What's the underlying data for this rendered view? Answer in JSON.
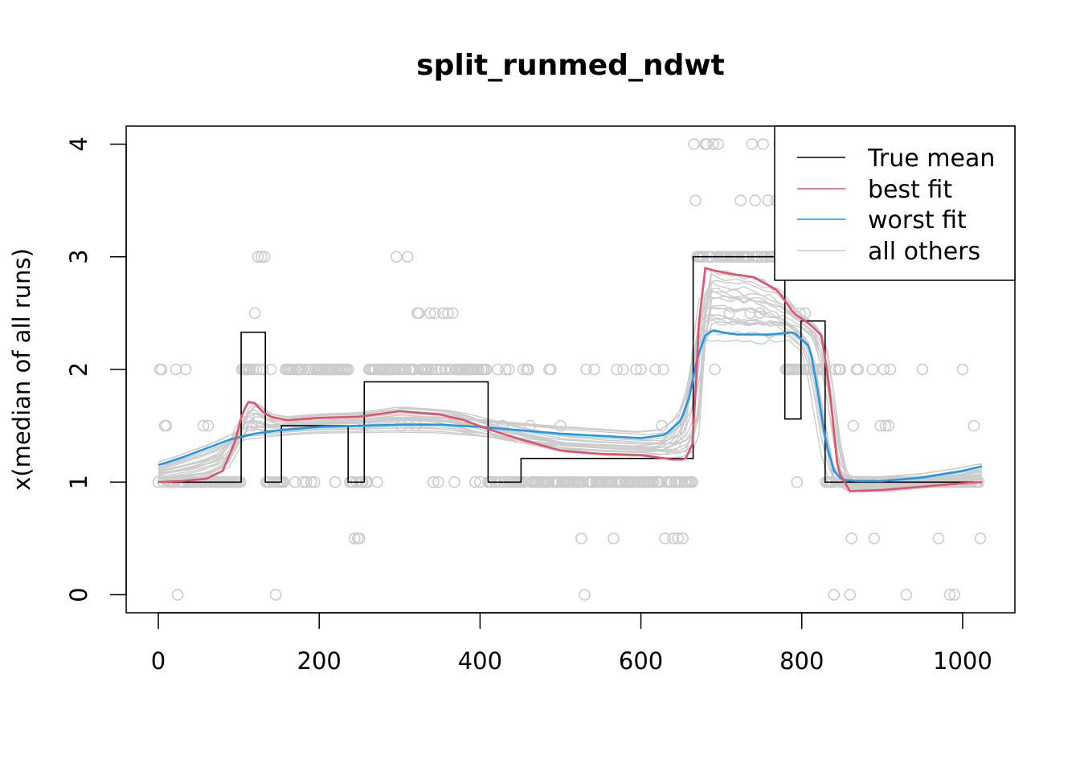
{
  "chart_data": {
    "type": "line",
    "title": "split_runmed_ndwt",
    "xlabel": "",
    "ylabel": "x(median of all runs)",
    "xlim": [
      -40,
      1065
    ],
    "ylim": [
      -0.16,
      4.16
    ],
    "x_ticks": [
      0,
      200,
      400,
      600,
      800,
      1000
    ],
    "y_ticks": [
      0,
      1,
      2,
      3,
      4
    ],
    "legend_position": "top-right",
    "colors": {
      "true_mean": "#000000",
      "best_fit": "#DF536B",
      "worst_fit": "#2297E6",
      "all_others": "#CCCCCC",
      "points": "#CCCCCC"
    },
    "legend": [
      "True mean",
      "best fit",
      "worst fit",
      "all others"
    ],
    "true_mean": [
      [
        0,
        1
      ],
      [
        103,
        1
      ],
      [
        103,
        2.33
      ],
      [
        133,
        2.33
      ],
      [
        133,
        1
      ],
      [
        153,
        1
      ],
      [
        153,
        1.5
      ],
      [
        236,
        1.5
      ],
      [
        236,
        1
      ],
      [
        256,
        1
      ],
      [
        256,
        1.89
      ],
      [
        410,
        1.89
      ],
      [
        410,
        1
      ],
      [
        451,
        1
      ],
      [
        451,
        1.21
      ],
      [
        665,
        1.21
      ],
      [
        665,
        3
      ],
      [
        779,
        3
      ],
      [
        779,
        1.56
      ],
      [
        799,
        1.56
      ],
      [
        799,
        2.43
      ],
      [
        829,
        2.43
      ],
      [
        829,
        1
      ],
      [
        1024,
        1
      ]
    ],
    "best_fit": {
      "x": [
        0,
        30,
        60,
        80,
        95,
        105,
        112,
        120,
        130,
        140,
        160,
        200,
        250,
        300,
        350,
        380,
        410,
        450,
        500,
        550,
        600,
        640,
        655,
        665,
        672,
        680,
        690,
        710,
        740,
        770,
        790,
        810,
        825,
        835,
        845,
        860,
        900,
        950,
        1000,
        1024
      ],
      "y": [
        1.0,
        1.01,
        1.03,
        1.1,
        1.35,
        1.62,
        1.71,
        1.7,
        1.62,
        1.58,
        1.55,
        1.57,
        1.58,
        1.63,
        1.6,
        1.55,
        1.47,
        1.38,
        1.28,
        1.25,
        1.24,
        1.2,
        1.2,
        1.35,
        2.4,
        2.9,
        2.88,
        2.85,
        2.82,
        2.7,
        2.5,
        2.4,
        2.3,
        1.8,
        1.1,
        0.92,
        0.93,
        0.96,
        0.99,
        1.0
      ]
    },
    "worst_fit": {
      "x": [
        0,
        30,
        60,
        90,
        120,
        150,
        200,
        250,
        300,
        350,
        400,
        450,
        500,
        550,
        600,
        630,
        650,
        660,
        670,
        680,
        690,
        700,
        720,
        760,
        790,
        810,
        820,
        830,
        840,
        850,
        870,
        900,
        950,
        1000,
        1024
      ],
      "y": [
        1.15,
        1.22,
        1.3,
        1.38,
        1.43,
        1.46,
        1.49,
        1.5,
        1.51,
        1.51,
        1.49,
        1.46,
        1.43,
        1.41,
        1.39,
        1.42,
        1.55,
        1.75,
        2.1,
        2.3,
        2.35,
        2.33,
        2.31,
        2.31,
        2.33,
        2.2,
        1.8,
        1.35,
        1.1,
        1.02,
        1.01,
        1.01,
        1.04,
        1.1,
        1.14
      ]
    },
    "points": {
      "count": 1024,
      "levels": [
        0,
        0.5,
        1,
        1.5,
        2,
        2.5,
        3,
        3.5,
        4
      ]
    }
  }
}
